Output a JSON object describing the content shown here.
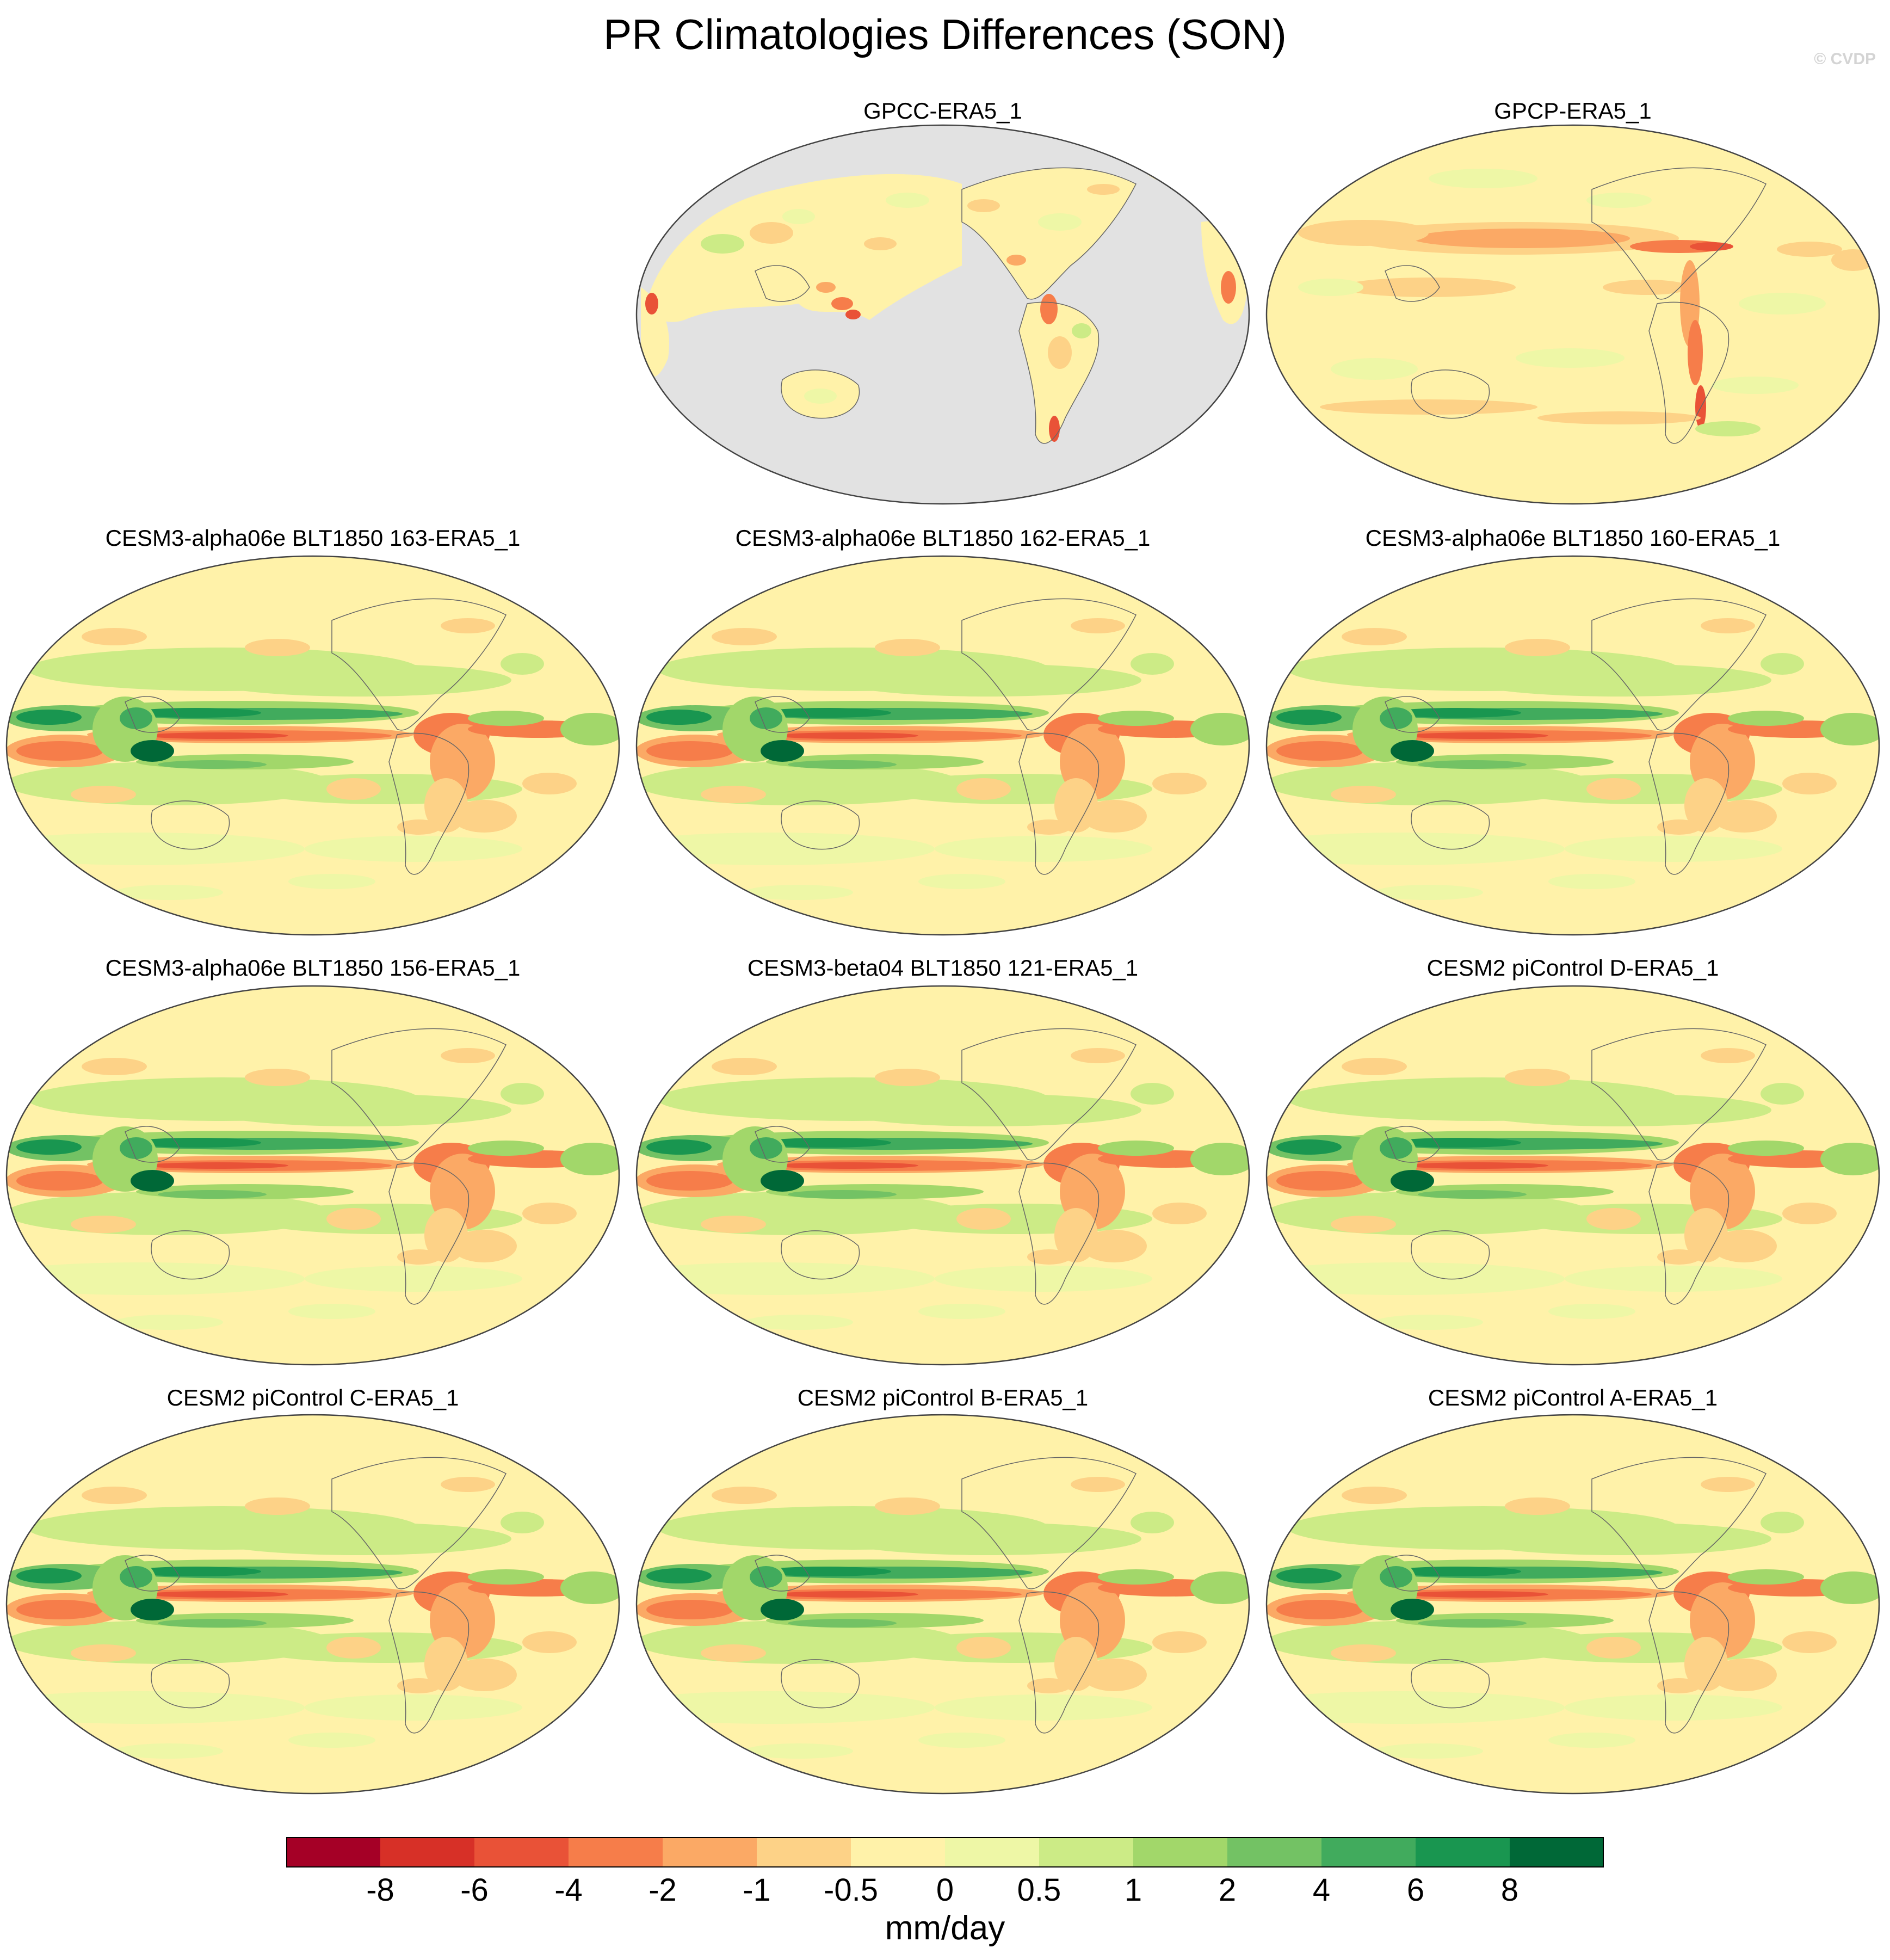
{
  "title": "PR Climatologies Differences (SON)",
  "watermark": "© CVDP",
  "panels": [
    {
      "label": "GPCC-ERA5_1",
      "pattern": "land-only"
    },
    {
      "label": "GPCP-ERA5_1",
      "pattern": "obs"
    },
    {
      "label": "CESM3-alpha06e BLT1850 163-ERA5_1",
      "pattern": "model"
    },
    {
      "label": "CESM3-alpha06e BLT1850 162-ERA5_1",
      "pattern": "model"
    },
    {
      "label": "CESM3-alpha06e BLT1850 160-ERA5_1",
      "pattern": "model"
    },
    {
      "label": "CESM3-alpha06e BLT1850 156-ERA5_1",
      "pattern": "model"
    },
    {
      "label": "CESM3-beta04 BLT1850 121-ERA5_1",
      "pattern": "model"
    },
    {
      "label": "CESM2 piControl D-ERA5_1",
      "pattern": "model"
    },
    {
      "label": "CESM2 piControl C-ERA5_1",
      "pattern": "model"
    },
    {
      "label": "CESM2 piControl B-ERA5_1",
      "pattern": "model"
    },
    {
      "label": "CESM2 piControl A-ERA5_1",
      "pattern": "model"
    }
  ],
  "colorbar": {
    "units": "mm/day",
    "tick_labels": [
      "-8",
      "-6",
      "-4",
      "-2",
      "-1",
      "-0.5",
      "0",
      "0.5",
      "1",
      "2",
      "4",
      "6",
      "8"
    ],
    "colors": [
      "#a50026",
      "#d73027",
      "#e95237",
      "#f67d4a",
      "#fba965",
      "#fdd287",
      "#fff2a9",
      "#eef7a6",
      "#cceb86",
      "#a2d76a",
      "#73c264",
      "#41ab5d",
      "#199650",
      "#006837"
    ],
    "missing_color": "#e2e2e2"
  }
}
